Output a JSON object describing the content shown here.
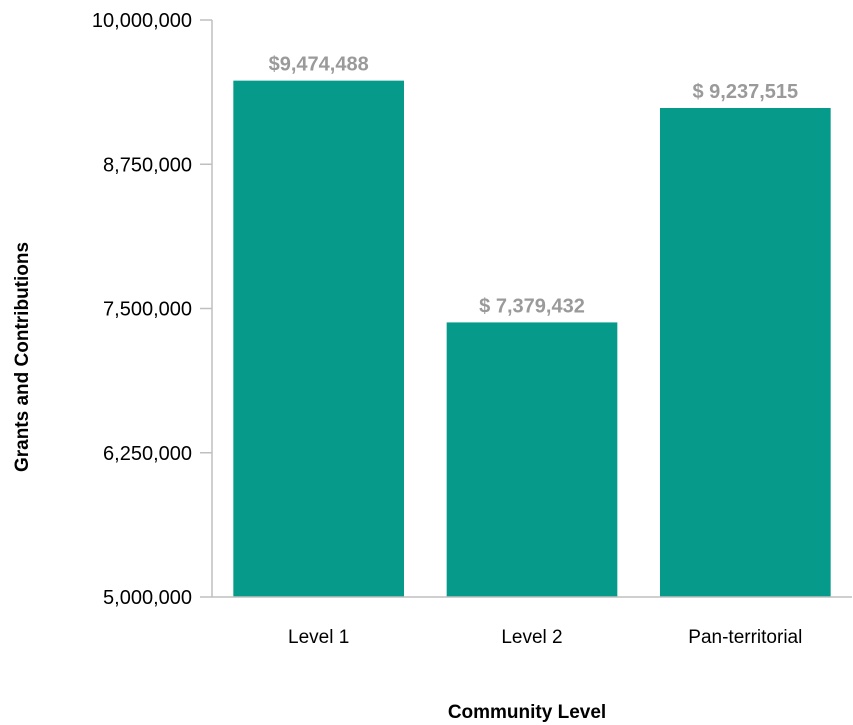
{
  "chart_data": {
    "type": "bar",
    "title": "",
    "xlabel": "Community Level",
    "ylabel": "Grants and Contributions",
    "categories": [
      "Level 1",
      "Level 2",
      "Pan-territorial"
    ],
    "values": [
      9474488,
      7379432,
      9237515
    ],
    "data_labels": [
      "$9,474,488",
      "$ 7,379,432",
      "$ 9,237,515"
    ],
    "ylim": [
      5000000,
      10000000
    ],
    "yticks": [
      5000000,
      6250000,
      7500000,
      8750000,
      10000000
    ],
    "ytick_labels": [
      "5,000,000",
      "6,250,000",
      "7,500,000",
      "8,750,000",
      "10,000,000"
    ],
    "grid": false,
    "legend": "none",
    "colors": {
      "bar": "#069a8a",
      "axis": "#bfbfbf",
      "data_label": "#9a9a9a"
    }
  }
}
